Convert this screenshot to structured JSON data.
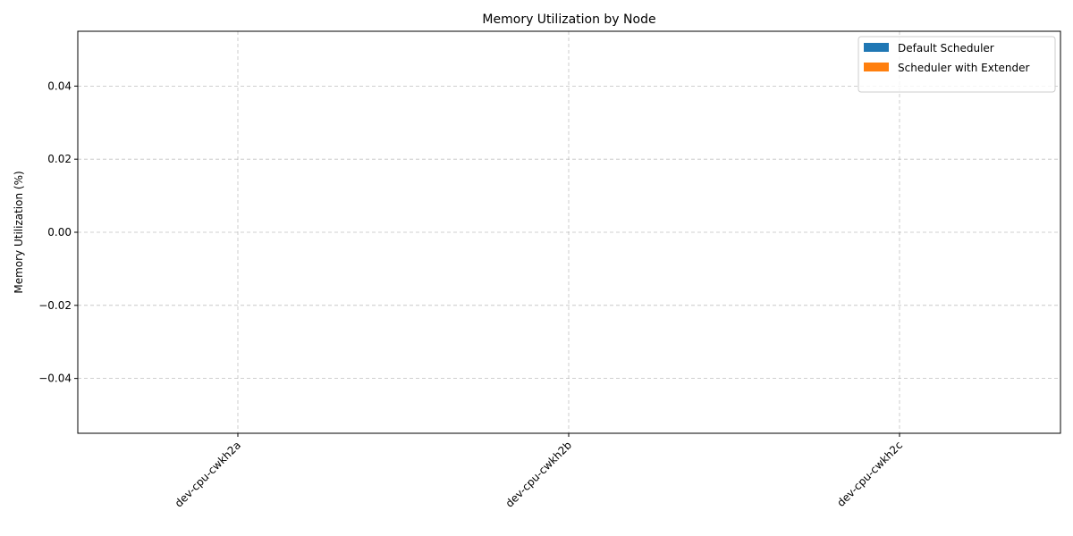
{
  "chart_data": {
    "type": "bar",
    "title": "Memory Utilization by Node",
    "xlabel": "",
    "ylabel": "Memory Utilization (%)",
    "categories": [
      "dev-cpu-cwkh2a",
      "dev-cpu-cwkh2b",
      "dev-cpu-cwkh2c"
    ],
    "series": [
      {
        "name": "Default Scheduler",
        "values": [
          0,
          0,
          0
        ],
        "color": "#1f77b4"
      },
      {
        "name": "Scheduler with Extender",
        "values": [
          0,
          0,
          0
        ],
        "color": "#ff7f0e"
      }
    ],
    "ylim": [
      -0.055,
      0.055
    ],
    "yticks": [
      -0.04,
      -0.02,
      0.0,
      0.02,
      0.04
    ],
    "ytick_labels": [
      "−0.04",
      "−0.02",
      "0.00",
      "0.02",
      "0.04"
    ],
    "grid": true,
    "legend_position": "top-right",
    "xtick_rotation": 45
  }
}
